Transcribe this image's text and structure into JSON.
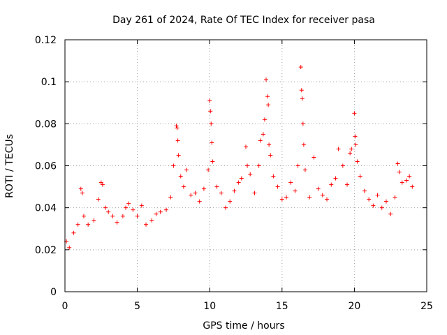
{
  "chart_data": {
    "type": "scatter",
    "title": "Day 261 of 2024, Rate Of TEC Index for receiver pasa",
    "xlabel": "GPS time / hours",
    "ylabel": "ROTI / TECUs",
    "xlim": [
      0,
      25
    ],
    "ylim": [
      0,
      0.12
    ],
    "x_ticks": [
      0,
      5,
      10,
      15,
      20,
      25
    ],
    "x_tick_labels": [
      "0",
      "5",
      "10",
      "15",
      "20",
      "25"
    ],
    "y_ticks": [
      0,
      0.02,
      0.04,
      0.06,
      0.08,
      0.1,
      0.12
    ],
    "y_tick_labels": [
      "0",
      "0.02",
      "0.04",
      "0.06",
      "0.08",
      "0.1",
      "0.12"
    ],
    "grid": true,
    "marker": "+",
    "color": "#ff0000",
    "series": [
      {
        "name": "ROTI",
        "points": [
          [
            0.1,
            0.024
          ],
          [
            0.3,
            0.021
          ],
          [
            0.6,
            0.028
          ],
          [
            0.9,
            0.032
          ],
          [
            1.1,
            0.049
          ],
          [
            1.2,
            0.047
          ],
          [
            1.3,
            0.036
          ],
          [
            1.6,
            0.032
          ],
          [
            2.0,
            0.034
          ],
          [
            2.3,
            0.044
          ],
          [
            2.5,
            0.052
          ],
          [
            2.6,
            0.051
          ],
          [
            2.8,
            0.04
          ],
          [
            3.0,
            0.038
          ],
          [
            3.3,
            0.036
          ],
          [
            3.6,
            0.033
          ],
          [
            4.0,
            0.036
          ],
          [
            4.2,
            0.04
          ],
          [
            4.4,
            0.042
          ],
          [
            4.7,
            0.039
          ],
          [
            5.0,
            0.036
          ],
          [
            5.3,
            0.041
          ],
          [
            5.6,
            0.032
          ],
          [
            6.0,
            0.034
          ],
          [
            6.3,
            0.037
          ],
          [
            6.6,
            0.038
          ],
          [
            7.0,
            0.039
          ],
          [
            7.3,
            0.045
          ],
          [
            7.5,
            0.06
          ],
          [
            7.7,
            0.079
          ],
          [
            7.75,
            0.078
          ],
          [
            7.8,
            0.072
          ],
          [
            7.85,
            0.065
          ],
          [
            8.0,
            0.055
          ],
          [
            8.2,
            0.05
          ],
          [
            8.4,
            0.058
          ],
          [
            8.7,
            0.046
          ],
          [
            9.0,
            0.047
          ],
          [
            9.3,
            0.043
          ],
          [
            9.6,
            0.049
          ],
          [
            9.9,
            0.058
          ],
          [
            10.0,
            0.091
          ],
          [
            10.05,
            0.086
          ],
          [
            10.1,
            0.08
          ],
          [
            10.15,
            0.071
          ],
          [
            10.2,
            0.062
          ],
          [
            10.5,
            0.05
          ],
          [
            10.8,
            0.047
          ],
          [
            11.1,
            0.04
          ],
          [
            11.4,
            0.043
          ],
          [
            11.7,
            0.048
          ],
          [
            12.0,
            0.052
          ],
          [
            12.2,
            0.054
          ],
          [
            12.5,
            0.069
          ],
          [
            12.6,
            0.06
          ],
          [
            12.8,
            0.056
          ],
          [
            13.1,
            0.047
          ],
          [
            13.4,
            0.06
          ],
          [
            13.5,
            0.072
          ],
          [
            13.7,
            0.075
          ],
          [
            13.8,
            0.082
          ],
          [
            13.9,
            0.101
          ],
          [
            14.0,
            0.093
          ],
          [
            14.05,
            0.089
          ],
          [
            14.1,
            0.07
          ],
          [
            14.2,
            0.065
          ],
          [
            14.4,
            0.055
          ],
          [
            14.7,
            0.05
          ],
          [
            15.0,
            0.044
          ],
          [
            15.3,
            0.045
          ],
          [
            15.6,
            0.052
          ],
          [
            15.9,
            0.048
          ],
          [
            16.1,
            0.06
          ],
          [
            16.3,
            0.107
          ],
          [
            16.35,
            0.096
          ],
          [
            16.4,
            0.092
          ],
          [
            16.45,
            0.08
          ],
          [
            16.5,
            0.07
          ],
          [
            16.6,
            0.058
          ],
          [
            16.9,
            0.045
          ],
          [
            17.2,
            0.064
          ],
          [
            17.5,
            0.049
          ],
          [
            17.8,
            0.046
          ],
          [
            18.1,
            0.044
          ],
          [
            18.4,
            0.051
          ],
          [
            18.7,
            0.054
          ],
          [
            18.9,
            0.068
          ],
          [
            19.2,
            0.06
          ],
          [
            19.5,
            0.051
          ],
          [
            19.7,
            0.066
          ],
          [
            19.8,
            0.068
          ],
          [
            20.0,
            0.085
          ],
          [
            20.05,
            0.074
          ],
          [
            20.1,
            0.07
          ],
          [
            20.2,
            0.062
          ],
          [
            20.4,
            0.055
          ],
          [
            20.7,
            0.048
          ],
          [
            21.0,
            0.044
          ],
          [
            21.3,
            0.041
          ],
          [
            21.6,
            0.046
          ],
          [
            21.9,
            0.04
          ],
          [
            22.2,
            0.043
          ],
          [
            22.5,
            0.037
          ],
          [
            22.8,
            0.045
          ],
          [
            23.0,
            0.061
          ],
          [
            23.1,
            0.057
          ],
          [
            23.3,
            0.052
          ],
          [
            23.6,
            0.053
          ],
          [
            23.8,
            0.055
          ],
          [
            24.0,
            0.05
          ]
        ]
      }
    ]
  }
}
